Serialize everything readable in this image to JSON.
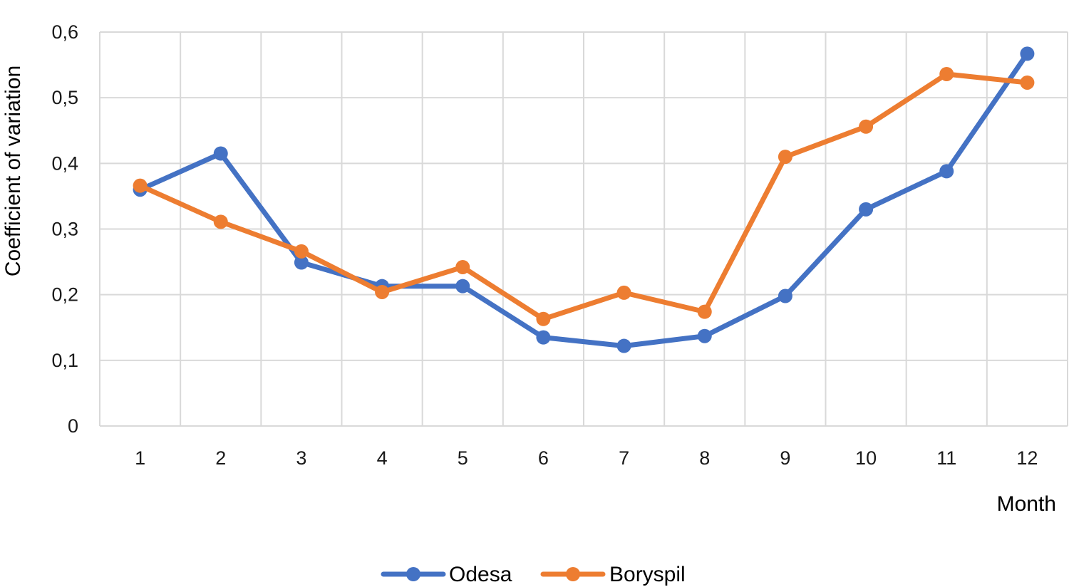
{
  "chart_data": {
    "type": "line",
    "title": "",
    "xlabel": "Month",
    "ylabel": "Coefficient of variation",
    "x": [
      1,
      2,
      3,
      4,
      5,
      6,
      7,
      8,
      9,
      10,
      11,
      12
    ],
    "x_tick_labels": [
      "1",
      "2",
      "3",
      "4",
      "5",
      "6",
      "7",
      "8",
      "9",
      "10",
      "11",
      "12"
    ],
    "ylim": [
      0,
      0.6
    ],
    "y_ticks": [
      0,
      0.1,
      0.2,
      0.3,
      0.4,
      0.5,
      0.6
    ],
    "y_tick_labels": [
      "0",
      "0,1",
      "0,2",
      "0,3",
      "0,4",
      "0,5",
      "0,6"
    ],
    "grid": true,
    "legend_position": "bottom",
    "series": [
      {
        "name": "Odesa",
        "color": "#4472C4",
        "values": [
          0.36,
          0.415,
          0.249,
          0.213,
          0.213,
          0.135,
          0.122,
          0.137,
          0.198,
          0.33,
          0.388,
          0.567
        ]
      },
      {
        "name": "Boryspil",
        "color": "#ED7D31",
        "values": [
          0.366,
          0.311,
          0.266,
          0.204,
          0.242,
          0.163,
          0.203,
          0.174,
          0.41,
          0.456,
          0.536,
          0.523
        ]
      }
    ]
  }
}
